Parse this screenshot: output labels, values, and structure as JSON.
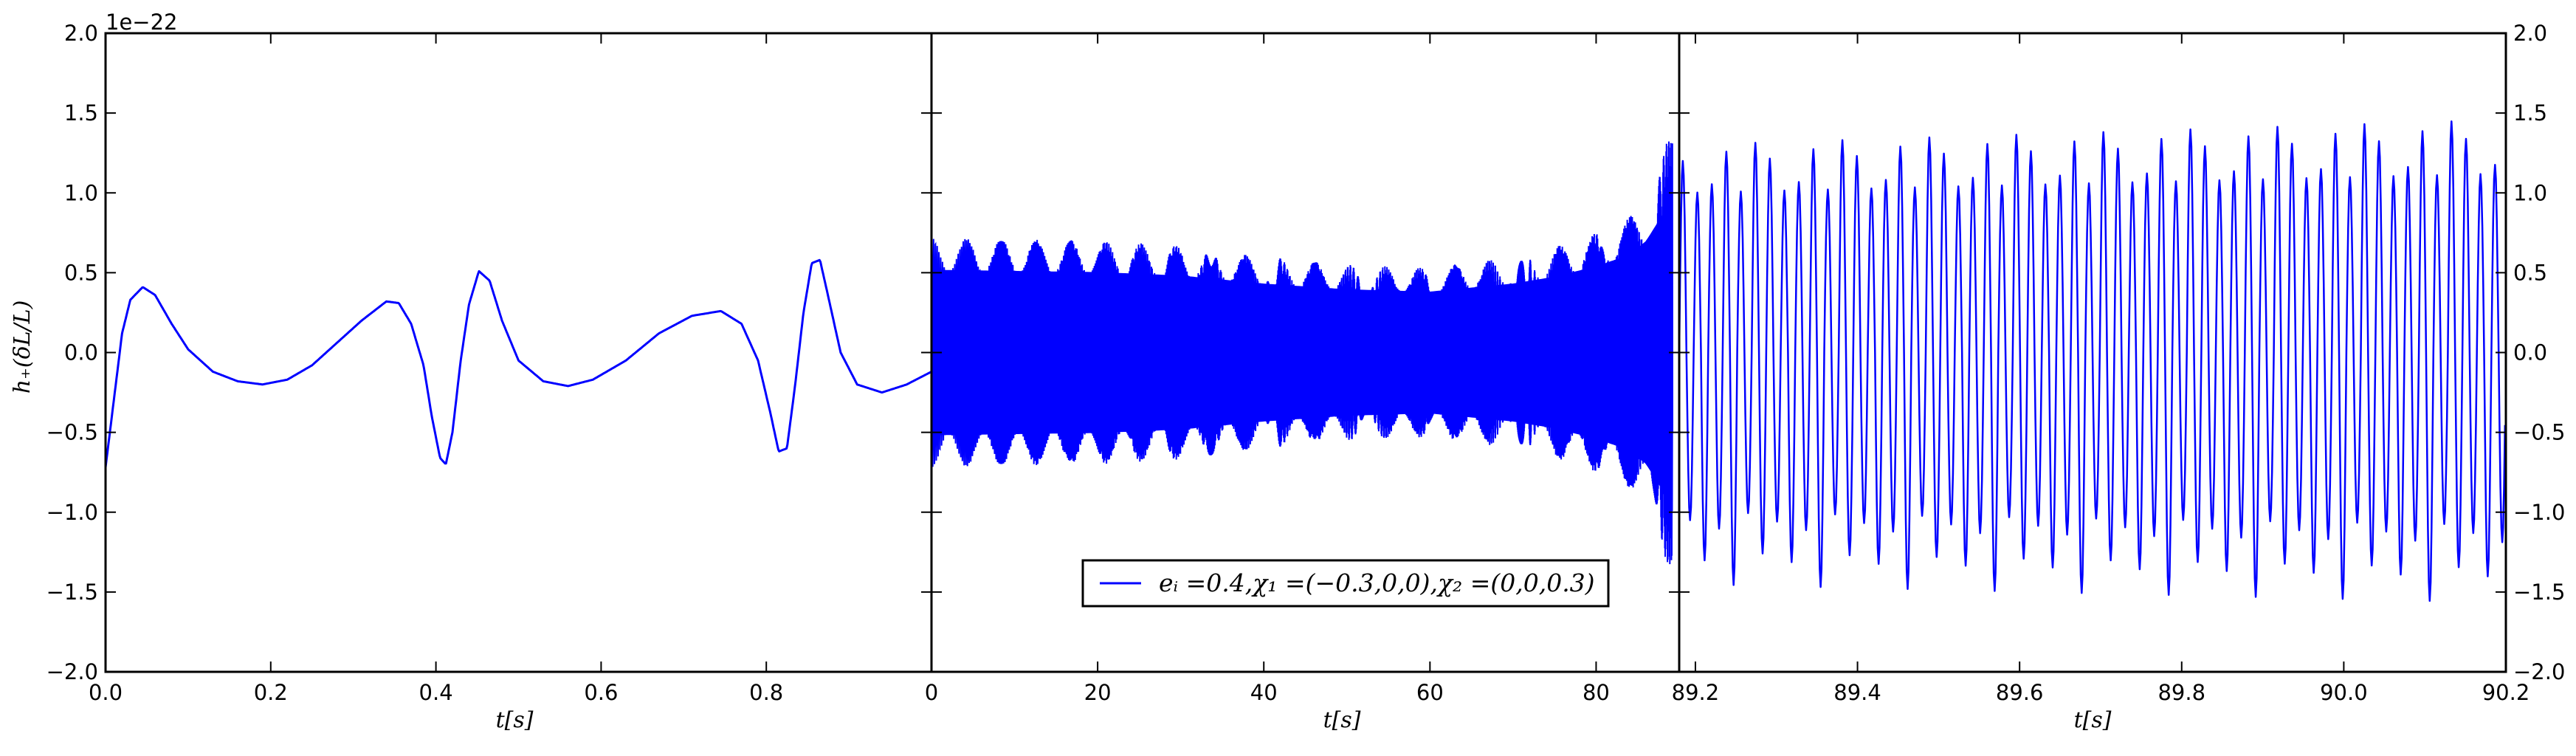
{
  "figure": {
    "offset_label": "1e−22",
    "y_axis_label": "h₊(δL/L)",
    "legend_label": "eᵢ =0.4,χ₁ =(−0.3,0,0),χ₂ =(0,0,0.3)",
    "line_color": "#0000ff"
  },
  "chart_data": [
    {
      "type": "line",
      "panel": "left",
      "xlabel": "t[s]",
      "ylabel": "h₊(δL/L)",
      "xlim": [
        0.0,
        1.0
      ],
      "ylim": [
        -2.0,
        2.0
      ],
      "y_scale_exponent": -22,
      "x_ticks": [
        "0.0",
        "0.2",
        "0.4",
        "0.6",
        "0.8"
      ],
      "y_ticks": [
        "−2.0",
        "−1.5",
        "−1.0",
        "−0.5",
        "0.0",
        "0.5",
        "1.0",
        "1.5",
        "2.0"
      ],
      "grid": false,
      "series": [
        {
          "x": [
            0.0,
            0.01,
            0.02,
            0.03,
            0.045,
            0.06,
            0.08,
            0.1,
            0.13,
            0.16,
            0.19,
            0.22,
            0.25,
            0.28,
            0.31,
            0.34,
            0.355,
            0.37,
            0.385,
            0.395,
            0.405,
            0.412,
            0.42,
            0.43,
            0.44,
            0.452,
            0.465,
            0.48,
            0.5,
            0.53,
            0.56,
            0.59,
            0.63,
            0.67,
            0.71,
            0.745,
            0.77,
            0.79,
            0.805,
            0.815,
            0.825,
            0.835,
            0.845,
            0.855,
            0.865,
            0.875,
            0.89,
            0.91,
            0.94,
            0.97,
            1.0
          ],
          "y": [
            -0.72,
            -0.3,
            0.12,
            0.33,
            0.41,
            0.36,
            0.18,
            0.02,
            -0.12,
            -0.18,
            -0.2,
            -0.17,
            -0.08,
            0.06,
            0.2,
            0.32,
            0.31,
            0.18,
            -0.08,
            -0.4,
            -0.66,
            -0.7,
            -0.5,
            -0.05,
            0.3,
            0.51,
            0.45,
            0.2,
            -0.05,
            -0.18,
            -0.21,
            -0.17,
            -0.05,
            0.12,
            0.23,
            0.26,
            0.18,
            -0.05,
            -0.38,
            -0.62,
            -0.6,
            -0.2,
            0.25,
            0.56,
            0.58,
            0.35,
            0.0,
            -0.2,
            -0.25,
            -0.2,
            -0.12
          ]
        }
      ]
    },
    {
      "type": "line",
      "panel": "middle",
      "xlabel": "t[s]",
      "xlim": [
        0,
        90
      ],
      "ylim": [
        -2.0,
        2.0
      ],
      "x_ticks": [
        "0",
        "20",
        "40",
        "60",
        "80"
      ],
      "grid": false,
      "legend": {
        "position": "bottom-center",
        "entries": [
          "eᵢ =0.4,χ₁ =(−0.3,0,0),χ₂ =(0,0,0.3)"
        ]
      },
      "series": [
        {
          "name": "eᵢ =0.4,χ₁ =(−0.3,0,0),χ₂ =(0,0,0.3)",
          "envelope_x": [
            0,
            10,
            20,
            30,
            40,
            50,
            60,
            70,
            75,
            80,
            84,
            86,
            88,
            89.2
          ],
          "envelope_y": [
            0.72,
            0.71,
            0.7,
            0.67,
            0.6,
            0.55,
            0.53,
            0.6,
            0.66,
            0.75,
            0.85,
            0.97,
            1.2,
            1.52
          ],
          "cycle_frequency_start": 1.0,
          "cycle_frequency_end": 10.0
        }
      ]
    },
    {
      "type": "line",
      "panel": "right",
      "xlabel": "t[s]",
      "xlim": [
        89.18,
        90.2
      ],
      "ylim": [
        -2.0,
        2.0
      ],
      "x_ticks": [
        "89.2",
        "89.4",
        "89.6",
        "89.8",
        "90.0",
        "90.2"
      ],
      "y_ticks_right": [
        "−2.0",
        "−1.5",
        "−1.0",
        "−0.5",
        "0.0",
        "0.5",
        "1.0",
        "1.5",
        "2.0"
      ],
      "grid": false,
      "series": [
        {
          "cycles": 57,
          "peak_values_pattern": [
            1.2,
            1.0,
            1.05,
            1.25,
            1.0,
            1.3
          ],
          "trough_values_pattern": [
            -1.05,
            -1.3,
            -1.1,
            -1.45,
            -1.0,
            -1.25
          ],
          "peak_trend_end": 1.45,
          "trough_trend_end": -1.5
        }
      ]
    }
  ]
}
